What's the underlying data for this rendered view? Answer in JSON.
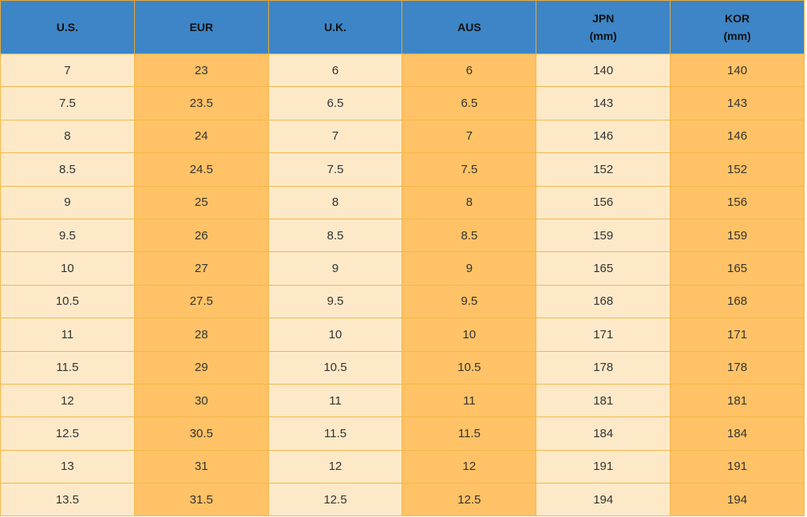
{
  "table": {
    "headers": [
      "U.S.",
      "EUR",
      "U.K.",
      "AUS",
      "JPN\n(mm)",
      "KOR\n(mm)"
    ],
    "rows": [
      [
        7,
        23,
        6,
        6,
        140,
        140
      ],
      [
        7.5,
        23.5,
        6.5,
        6.5,
        143,
        143
      ],
      [
        8,
        24,
        7,
        7,
        146,
        146
      ],
      [
        8.5,
        24.5,
        7.5,
        7.5,
        152,
        152
      ],
      [
        9,
        25,
        8,
        8,
        156,
        156
      ],
      [
        9.5,
        26,
        8.5,
        8.5,
        159,
        159
      ],
      [
        10,
        27,
        9,
        9,
        165,
        165
      ],
      [
        10.5,
        27.5,
        9.5,
        9.5,
        168,
        168
      ],
      [
        11,
        28,
        10,
        10,
        171,
        171
      ],
      [
        11.5,
        29,
        10.5,
        10.5,
        178,
        178
      ],
      [
        12,
        30,
        11,
        11,
        181,
        181
      ],
      [
        12.5,
        30.5,
        11.5,
        11.5,
        184,
        184
      ],
      [
        13,
        31,
        12,
        12,
        191,
        191
      ],
      [
        13.5,
        31.5,
        12.5,
        12.5,
        194,
        194
      ]
    ]
  }
}
